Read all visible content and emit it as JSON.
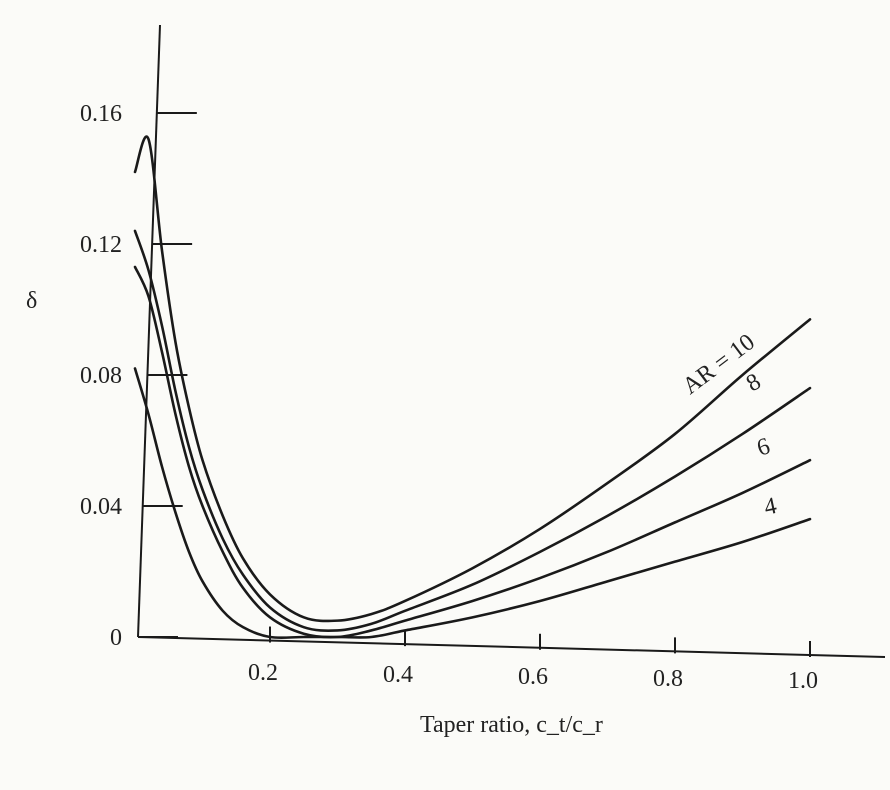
{
  "chart_data": {
    "type": "line",
    "title": "",
    "xlabel": "Taper ratio, c_t/c_r",
    "ylabel": "δ",
    "xlim": [
      0.0,
      1.0
    ],
    "ylim": [
      0.0,
      0.16
    ],
    "xticks": [
      0.2,
      0.4,
      0.6,
      0.8,
      1.0
    ],
    "xtick_labels": [
      "0.2",
      "0.4",
      "0.6",
      "0.8",
      "1.0"
    ],
    "yticks": [
      0,
      0.04,
      0.08,
      0.12,
      0.16
    ],
    "ytick_labels": [
      "0",
      "0.04",
      "0.08",
      "0.12",
      "0.16"
    ],
    "grid": false,
    "legend": "inline-right",
    "series": [
      {
        "name": "AR = 10",
        "label": "AR = 10",
        "x": [
          0.0,
          0.02,
          0.04,
          0.06,
          0.08,
          0.1,
          0.13,
          0.16,
          0.2,
          0.25,
          0.3,
          0.35,
          0.4,
          0.5,
          0.6,
          0.7,
          0.8,
          0.9,
          1.0
        ],
        "y": [
          0.142,
          0.152,
          0.118,
          0.09,
          0.07,
          0.054,
          0.037,
          0.024,
          0.013,
          0.006,
          0.005,
          0.007,
          0.011,
          0.021,
          0.033,
          0.047,
          0.062,
          0.08,
          0.097
        ]
      },
      {
        "name": "8",
        "label": "8",
        "x": [
          0.0,
          0.02,
          0.04,
          0.06,
          0.08,
          0.1,
          0.13,
          0.16,
          0.2,
          0.25,
          0.3,
          0.35,
          0.4,
          0.5,
          0.6,
          0.7,
          0.8,
          0.9,
          1.0
        ],
        "y": [
          0.124,
          0.112,
          0.095,
          0.075,
          0.058,
          0.045,
          0.03,
          0.019,
          0.009,
          0.003,
          0.002,
          0.004,
          0.008,
          0.016,
          0.026,
          0.037,
          0.049,
          0.062,
          0.076
        ]
      },
      {
        "name": "6",
        "label": "6",
        "x": [
          0.0,
          0.02,
          0.04,
          0.06,
          0.08,
          0.1,
          0.13,
          0.16,
          0.2,
          0.25,
          0.3,
          0.35,
          0.4,
          0.5,
          0.6,
          0.7,
          0.8,
          0.9,
          1.0
        ],
        "y": [
          0.113,
          0.104,
          0.087,
          0.068,
          0.052,
          0.04,
          0.026,
          0.015,
          0.006,
          0.001,
          0.0,
          0.002,
          0.005,
          0.011,
          0.018,
          0.026,
          0.035,
          0.044,
          0.054
        ]
      },
      {
        "name": "4",
        "label": "4",
        "x": [
          0.0,
          0.02,
          0.04,
          0.06,
          0.08,
          0.1,
          0.13,
          0.16,
          0.2,
          0.25,
          0.3,
          0.35,
          0.4,
          0.5,
          0.6,
          0.7,
          0.8,
          0.9,
          1.0
        ],
        "y": [
          0.082,
          0.068,
          0.052,
          0.038,
          0.026,
          0.017,
          0.008,
          0.003,
          0.0,
          0.0,
          0.0,
          0.0,
          0.002,
          0.006,
          0.011,
          0.017,
          0.023,
          0.029,
          0.036
        ]
      }
    ]
  }
}
